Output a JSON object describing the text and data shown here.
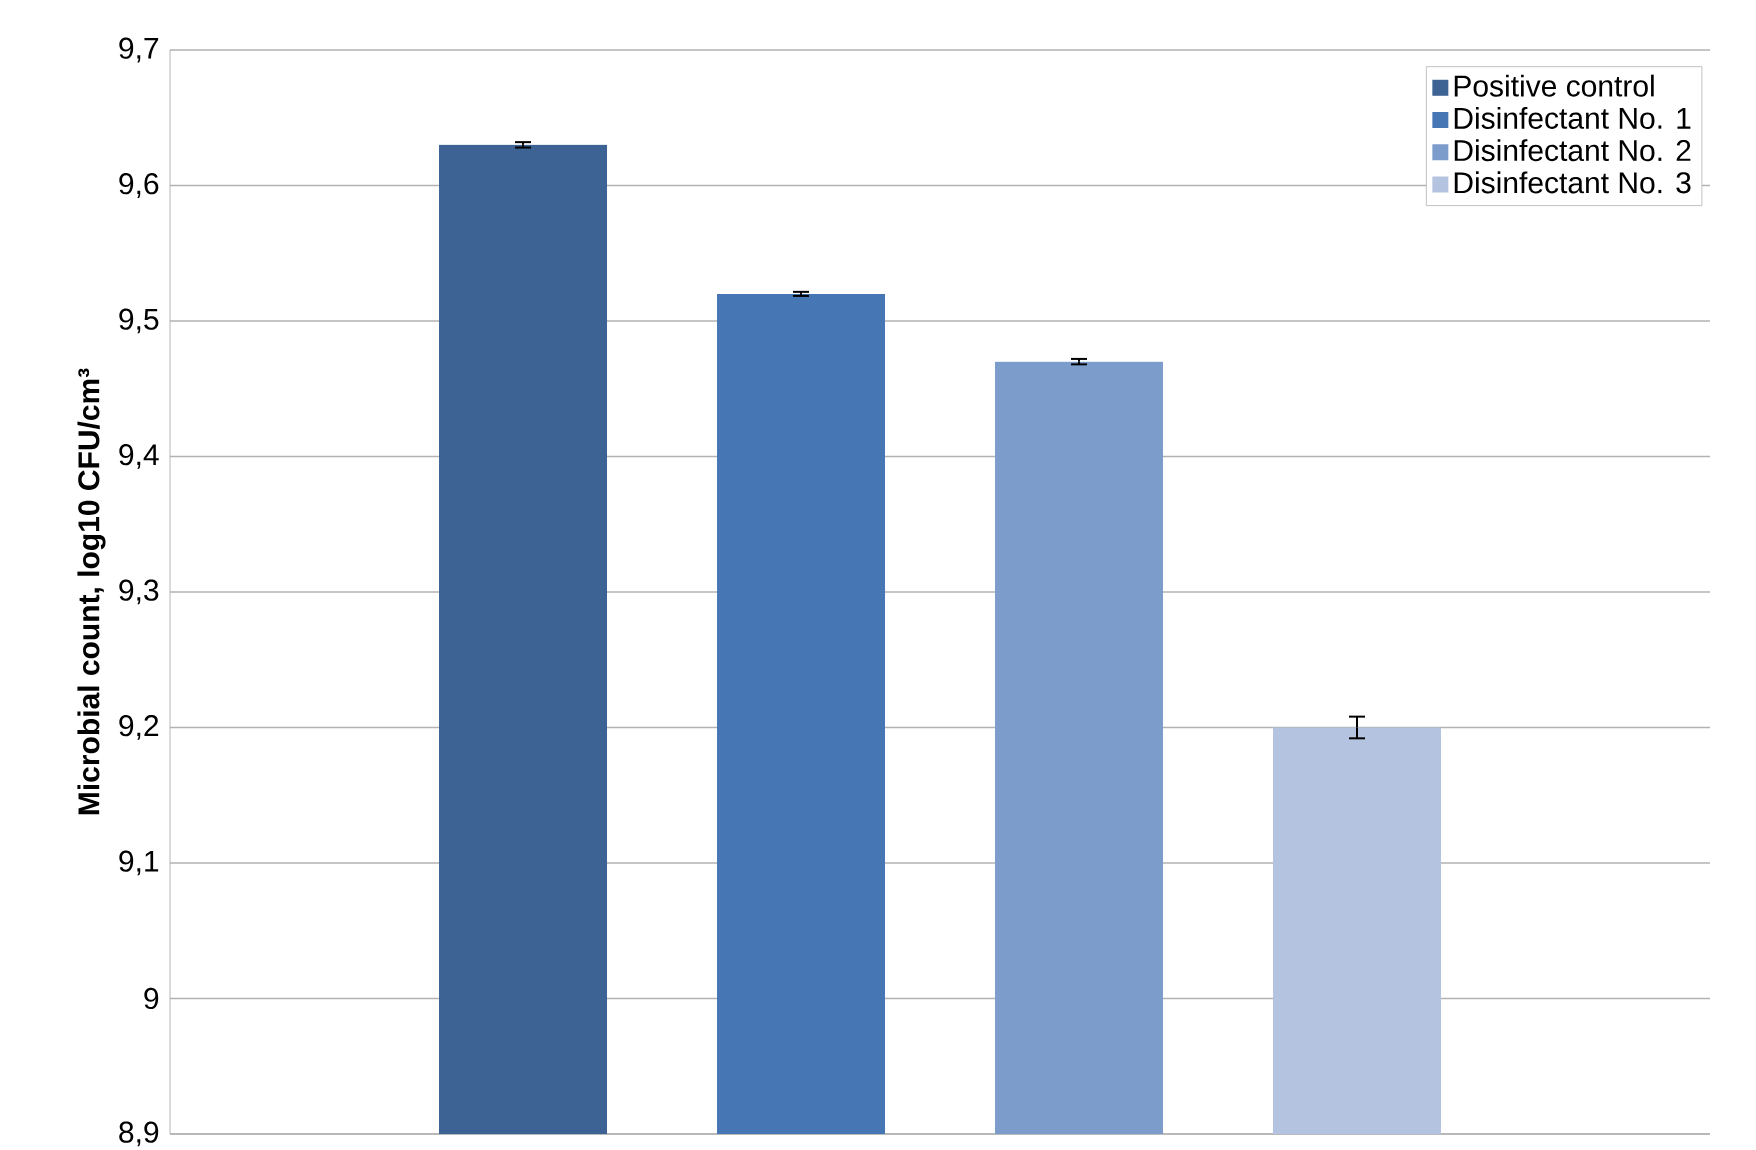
{
  "chart_data": {
    "type": "bar",
    "ylabel": "Microbial count, log10 CFU/cm³",
    "categories": [
      null
    ],
    "series": [
      {
        "name": "Positive control",
        "color": "#3c6393",
        "values": [
          9.63
        ],
        "errors": [
          0.002
        ]
      },
      {
        "name": "Disinfectant No. 1",
        "color": "#4677b4",
        "values": [
          9.52
        ],
        "errors": [
          0.0015
        ]
      },
      {
        "name": "Disinfectant No. 2",
        "color": "#7c9dcb",
        "values": [
          9.47
        ],
        "errors": [
          0.002
        ]
      },
      {
        "name": "Disinfectant No. 3",
        "color": "#b4c3df",
        "values": [
          9.2
        ],
        "errors": [
          0.008
        ]
      }
    ],
    "ylim": [
      8.9,
      9.7
    ],
    "yticks": [
      {
        "value": 8.9,
        "label": "8,9"
      },
      {
        "value": 9,
        "label": "9"
      },
      {
        "value": 9.1,
        "label": "9,1"
      },
      {
        "value": 9.2,
        "label": "9,2"
      },
      {
        "value": 9.3,
        "label": "9,3"
      },
      {
        "value": 9.4,
        "label": "9,4"
      },
      {
        "value": 9.5,
        "label": "9,5"
      },
      {
        "value": 9.6,
        "label": "9,6"
      },
      {
        "value": 9.7,
        "label": "9,7"
      }
    ],
    "grid": "y",
    "legend": "top right"
  }
}
